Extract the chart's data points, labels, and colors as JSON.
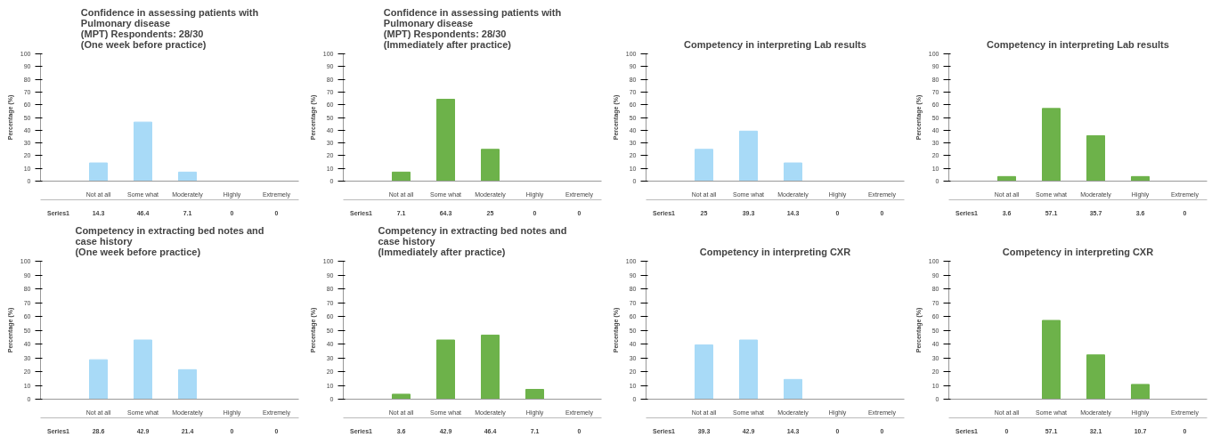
{
  "chart_data": [
    {
      "type": "bar",
      "title": "Confidence in assessing patients with\nPulmonary disease\n(MPT) Respondents: 28/30\n(One week before practice)",
      "ylabel": "Percentage (%)",
      "categories": [
        "Not at all",
        "Some what",
        "Moderately",
        "Highly",
        "Extremely"
      ],
      "series": [
        {
          "name": "Series1",
          "color": "#a8daf7",
          "values": [
            14.3,
            46.4,
            7.1,
            0,
            0
          ]
        }
      ],
      "ylim": [
        0,
        100
      ],
      "yticks": [
        0,
        10,
        20,
        30,
        40,
        50,
        60,
        70,
        80,
        90,
        100
      ],
      "data_labels": true
    },
    {
      "type": "bar",
      "title": "Confidence in assessing patients with\nPulmonary disease\n(MPT) Respondents: 28/30\n(Immediately after practice)",
      "ylabel": "Percentage (%)",
      "categories": [
        "Not at all",
        "Some what",
        "Moderately",
        "Highly",
        "Extremely"
      ],
      "series": [
        {
          "name": "Series1",
          "color": "#6db24a",
          "values": [
            7.1,
            64.3,
            25,
            0,
            0
          ]
        }
      ],
      "ylim": [
        0,
        100
      ],
      "yticks": [
        0,
        10,
        20,
        30,
        40,
        50,
        60,
        70,
        80,
        90,
        100
      ],
      "data_labels": true
    },
    {
      "type": "bar",
      "title": "Competency in interpreting Lab results",
      "ylabel": "Percentage (%)",
      "categories": [
        "Not at all",
        "Some what",
        "Moderately",
        "Highly",
        "Extremely"
      ],
      "series": [
        {
          "name": "Series1",
          "color": "#a8daf7",
          "values": [
            25,
            39.3,
            14.3,
            0,
            0
          ]
        }
      ],
      "ylim": [
        0,
        100
      ],
      "yticks": [
        0,
        10,
        20,
        30,
        40,
        50,
        60,
        70,
        80,
        90,
        100
      ],
      "data_labels": true
    },
    {
      "type": "bar",
      "title": "Competency in interpreting Lab results",
      "ylabel": "Percentage (%)",
      "categories": [
        "Not at all",
        "Some what",
        "Moderately",
        "Highly",
        "Extremely"
      ],
      "series": [
        {
          "name": "Series1",
          "color": "#6db24a",
          "values": [
            3.6,
            57.1,
            35.7,
            3.6,
            0
          ]
        }
      ],
      "ylim": [
        0,
        100
      ],
      "yticks": [
        0,
        10,
        20,
        30,
        40,
        50,
        60,
        70,
        80,
        90,
        100
      ],
      "data_labels": true
    },
    {
      "type": "bar",
      "title": "Competency in extracting bed notes and\ncase history\n(One week before practice)",
      "ylabel": "Percentage (%)",
      "categories": [
        "Not at all",
        "Some what",
        "Moderately",
        "Highly",
        "Extremely"
      ],
      "series": [
        {
          "name": "Series1",
          "color": "#a8daf7",
          "values": [
            28.6,
            42.9,
            21.4,
            0,
            0
          ]
        }
      ],
      "ylim": [
        0,
        100
      ],
      "yticks": [
        0,
        10,
        20,
        30,
        40,
        50,
        60,
        70,
        80,
        90,
        100
      ],
      "data_labels": true
    },
    {
      "type": "bar",
      "title": "Competency in extracting bed notes and\ncase history\n(Immediately after practice)",
      "ylabel": "Percentage (%)",
      "categories": [
        "Not at all",
        "Some what",
        "Moderately",
        "Highly",
        "Extremely"
      ],
      "series": [
        {
          "name": "Series1",
          "color": "#6db24a",
          "values": [
            3.6,
            42.9,
            46.4,
            7.1,
            0
          ]
        }
      ],
      "ylim": [
        0,
        100
      ],
      "yticks": [
        0,
        10,
        20,
        30,
        40,
        50,
        60,
        70,
        80,
        90,
        100
      ],
      "data_labels": true
    },
    {
      "type": "bar",
      "title": "Competency in interpreting CXR",
      "ylabel": "Percentage (%)",
      "categories": [
        "Not at all",
        "Some what",
        "Moderately",
        "Highly",
        "Extremely"
      ],
      "series": [
        {
          "name": "Series1",
          "color": "#a8daf7",
          "values": [
            39.3,
            42.9,
            14.3,
            0,
            0
          ]
        }
      ],
      "ylim": [
        0,
        100
      ],
      "yticks": [
        0,
        10,
        20,
        30,
        40,
        50,
        60,
        70,
        80,
        90,
        100
      ],
      "data_labels": true
    },
    {
      "type": "bar",
      "title": "Competency in interpreting CXR",
      "ylabel": "Percentage (%)",
      "categories": [
        "Not at all",
        "Some what",
        "Moderately",
        "Highly",
        "Extremely"
      ],
      "series": [
        {
          "name": "Series1",
          "color": "#6db24a",
          "values": [
            0,
            57.1,
            32.1,
            10.7,
            0
          ]
        }
      ],
      "ylim": [
        0,
        100
      ],
      "yticks": [
        0,
        10,
        20,
        30,
        40,
        50,
        60,
        70,
        80,
        90,
        100
      ],
      "data_labels": true
    }
  ]
}
